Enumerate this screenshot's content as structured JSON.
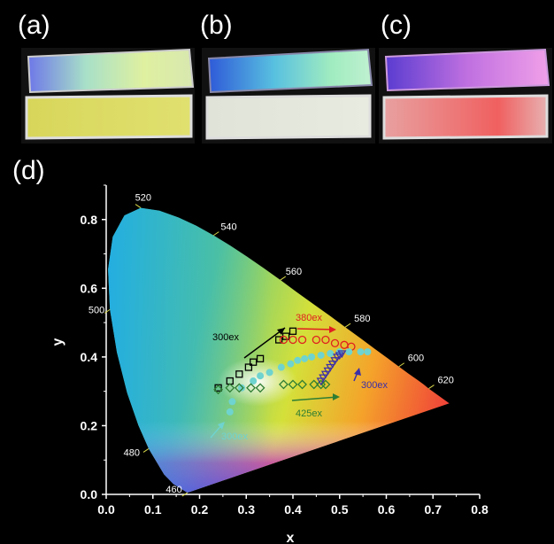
{
  "panels": {
    "a": "(a)",
    "b": "(b)",
    "c": "(c)",
    "d": "(d)"
  },
  "colors": {
    "series_300ex": "#000000",
    "series_380ex": "#e02020",
    "series_cyan": "#6fd3cf",
    "series_425ex": "#2e7d32",
    "series_triangles": "#3b2fa8"
  },
  "chart_data": {
    "type": "scatter",
    "xlabel": "x",
    "ylabel": "y",
    "xlim": [
      0.0,
      0.8
    ],
    "ylim": [
      0.0,
      0.9
    ],
    "x_ticks": [
      "0.0",
      "0.1",
      "0.2",
      "0.3",
      "0.4",
      "0.5",
      "0.6",
      "0.7",
      "0.8"
    ],
    "y_ticks": [
      "0.0",
      "0.2",
      "0.4",
      "0.6",
      "0.8"
    ],
    "wavelength_labels": [
      {
        "text": "460",
        "x": 0.174,
        "y": 0.005
      },
      {
        "text": "480",
        "x": 0.091,
        "y": 0.133
      },
      {
        "text": "500",
        "x": 0.008,
        "y": 0.538
      },
      {
        "text": "520",
        "x": 0.074,
        "y": 0.834
      },
      {
        "text": "540",
        "x": 0.23,
        "y": 0.754
      },
      {
        "text": "560",
        "x": 0.373,
        "y": 0.624
      },
      {
        "text": "580",
        "x": 0.512,
        "y": 0.487
      },
      {
        "text": "600",
        "x": 0.627,
        "y": 0.372
      },
      {
        "text": "620",
        "x": 0.691,
        "y": 0.308
      }
    ],
    "annotations": [
      {
        "text": "300ex",
        "color": "#000000"
      },
      {
        "text": "380ex",
        "color": "#e02020"
      },
      {
        "text": "300ex",
        "color": "#6fd3cf"
      },
      {
        "text": "425ex",
        "color": "#2e7d32"
      },
      {
        "text": "300ex",
        "color": "#3b2fa8"
      }
    ],
    "series": [
      {
        "marker": "square",
        "x": [
          0.24,
          0.265,
          0.285,
          0.305,
          0.315,
          0.33,
          0.37,
          0.385,
          0.4
        ],
        "y": [
          0.31,
          0.33,
          0.35,
          0.37,
          0.385,
          0.395,
          0.45,
          0.46,
          0.475
        ]
      },
      {
        "marker": "circle-open",
        "x": [
          0.38,
          0.4,
          0.42,
          0.45,
          0.47,
          0.49,
          0.51,
          0.525
        ],
        "y": [
          0.45,
          0.45,
          0.45,
          0.45,
          0.45,
          0.44,
          0.435,
          0.43
        ]
      },
      {
        "marker": "circle-filled",
        "x": [
          0.265,
          0.27,
          0.29,
          0.315,
          0.33,
          0.35,
          0.375,
          0.395,
          0.41,
          0.425,
          0.44,
          0.46,
          0.48,
          0.5,
          0.52,
          0.545,
          0.56
        ],
        "y": [
          0.24,
          0.27,
          0.31,
          0.33,
          0.345,
          0.355,
          0.37,
          0.38,
          0.39,
          0.395,
          0.4,
          0.405,
          0.41,
          0.415,
          0.415,
          0.415,
          0.415
        ]
      },
      {
        "marker": "diamond",
        "x": [
          0.24,
          0.265,
          0.285,
          0.31,
          0.33,
          0.38,
          0.4,
          0.42,
          0.445,
          0.46,
          0.47
        ],
        "y": [
          0.305,
          0.31,
          0.31,
          0.31,
          0.31,
          0.32,
          0.32,
          0.32,
          0.32,
          0.32,
          0.32
        ]
      },
      {
        "marker": "triangle",
        "x": [
          0.46,
          0.465,
          0.47,
          0.475,
          0.48,
          0.485,
          0.49,
          0.495,
          0.5,
          0.505
        ],
        "y": [
          0.33,
          0.34,
          0.35,
          0.36,
          0.37,
          0.38,
          0.39,
          0.4,
          0.405,
          0.41
        ]
      }
    ]
  }
}
